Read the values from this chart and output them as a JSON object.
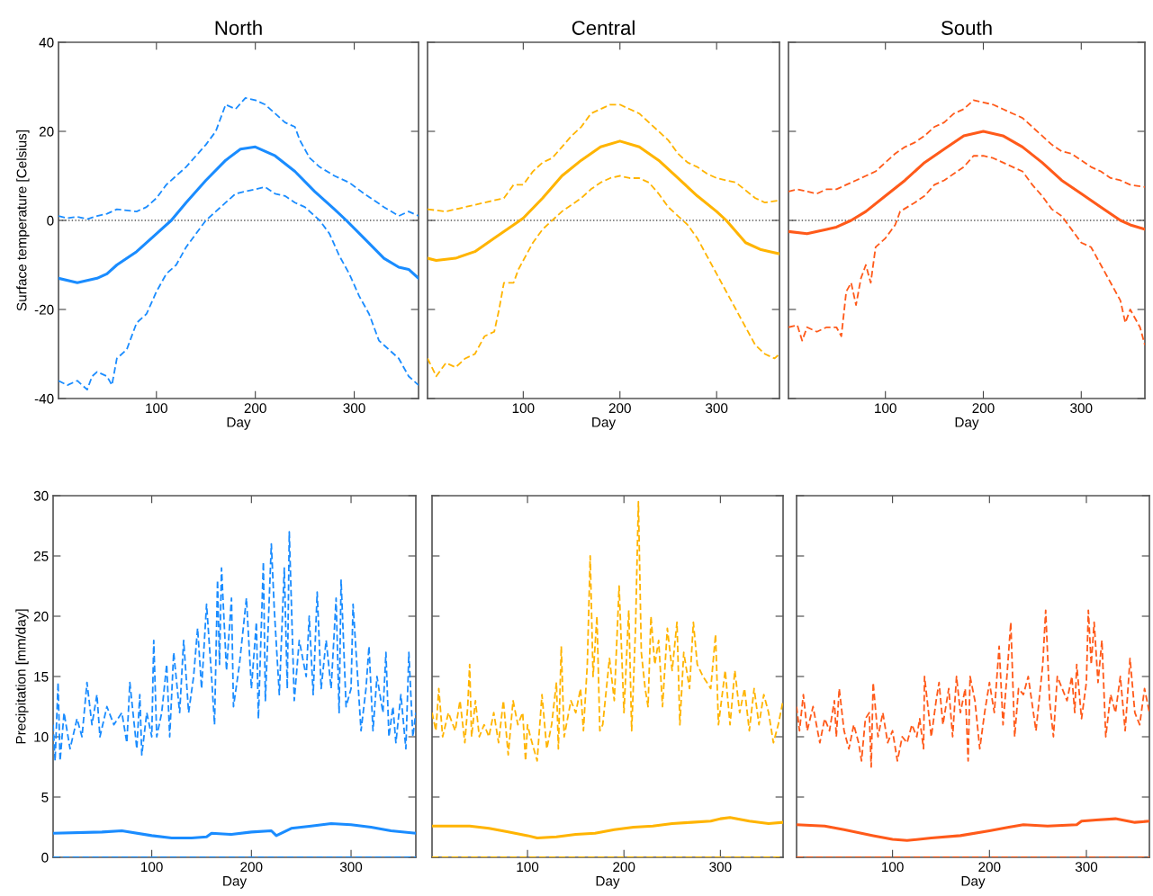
{
  "chart_data": [
    {
      "type": "line",
      "title": "North",
      "xlabel": "Day",
      "ylabel": "Surface temperature [Celsius]",
      "xlim": [
        1,
        365
      ],
      "xticks": [
        100,
        200,
        300
      ],
      "ylim": [
        -40,
        40
      ],
      "yticks": [
        -40,
        -20,
        0,
        20,
        40
      ],
      "ref_lines": [
        {
          "axis": "y",
          "value": 0,
          "color": "#555555",
          "line_style": "dotted"
        }
      ],
      "series": [
        {
          "color": "#1a8cff",
          "line_style": "solid",
          "x": [
            1,
            20,
            40,
            50,
            60,
            80,
            100,
            115,
            130,
            150,
            170,
            185,
            200,
            220,
            240,
            260,
            280,
            292,
            310,
            330,
            345,
            355,
            365
          ],
          "values": [
            -13,
            -14,
            -13,
            -12,
            -10,
            -7,
            -3,
            0,
            4,
            9,
            13.5,
            16,
            16.5,
            14.5,
            11,
            6.5,
            2.5,
            0,
            -4,
            -8.5,
            -10.5,
            -11,
            -13
          ]
        },
        {
          "color": "#1a8cff",
          "line_style": "dashed",
          "x": [
            1,
            10,
            20,
            30,
            40,
            50,
            60,
            80,
            90,
            100,
            110,
            120,
            130,
            140,
            150,
            160,
            170,
            180,
            190,
            200,
            210,
            220,
            230,
            240,
            245,
            255,
            265,
            280,
            295,
            310,
            330,
            345,
            355,
            365
          ],
          "values": [
            1,
            0.5,
            0.8,
            0.3,
            1,
            1.5,
            2.5,
            2,
            3,
            5,
            8,
            10,
            12,
            14.5,
            17,
            20,
            26,
            25,
            27.5,
            27,
            26,
            24,
            22,
            21,
            18,
            14,
            12,
            10,
            8.5,
            6,
            3,
            1,
            2,
            1
          ]
        },
        {
          "color": "#1a8cff",
          "line_style": "dashed",
          "x": [
            1,
            10,
            20,
            30,
            35,
            40,
            50,
            55,
            60,
            70,
            80,
            90,
            100,
            110,
            120,
            130,
            140,
            150,
            160,
            170,
            180,
            190,
            200,
            210,
            220,
            230,
            240,
            250,
            265,
            275,
            285,
            295,
            305,
            315,
            325,
            335,
            345,
            355,
            365
          ],
          "values": [
            -36,
            -37,
            -36,
            -38,
            -35,
            -34,
            -35,
            -37,
            -31,
            -29,
            -23,
            -21,
            -16,
            -12,
            -10,
            -6,
            -3,
            0,
            2,
            4,
            6,
            6.5,
            7,
            7.5,
            6,
            5.5,
            4,
            3,
            0,
            -3,
            -8,
            -12,
            -17,
            -21,
            -27,
            -29,
            -31,
            -35,
            -37
          ]
        }
      ]
    },
    {
      "type": "line",
      "title": "Central",
      "xlabel": "Day",
      "xlim": [
        1,
        365
      ],
      "xticks": [
        100,
        200,
        300
      ],
      "ylim": [
        -40,
        40
      ],
      "yticks": [
        -40,
        -20,
        0,
        20,
        40
      ],
      "tick_labels": "x",
      "ref_lines": [
        {
          "axis": "y",
          "value": 0,
          "color": "#555555",
          "line_style": "dotted"
        }
      ],
      "series": [
        {
          "color": "#ffb400",
          "line_style": "solid",
          "x": [
            1,
            10,
            30,
            50,
            70,
            90,
            100,
            120,
            140,
            160,
            180,
            200,
            220,
            240,
            260,
            280,
            300,
            310,
            330,
            345,
            355,
            365
          ],
          "values": [
            -8.5,
            -9,
            -8.5,
            -7,
            -4,
            -1,
            0.5,
            5,
            10,
            13.5,
            16.5,
            17.8,
            16.5,
            13.5,
            9.5,
            5.5,
            2,
            0,
            -5,
            -6.5,
            -7,
            -7.5
          ]
        },
        {
          "color": "#ffb400",
          "line_style": "dashed",
          "x": [
            1,
            20,
            40,
            60,
            80,
            90,
            100,
            110,
            120,
            130,
            140,
            150,
            160,
            170,
            180,
            190,
            200,
            210,
            220,
            230,
            240,
            250,
            260,
            270,
            280,
            290,
            300,
            320,
            340,
            350,
            365
          ],
          "values": [
            2.5,
            2,
            3,
            4,
            5,
            8,
            8,
            11,
            13,
            14,
            16.5,
            19,
            21,
            24,
            25,
            26,
            26,
            25,
            24,
            22,
            20,
            18,
            15,
            13,
            12,
            10.5,
            9.5,
            8.5,
            5,
            4,
            4.5
          ]
        },
        {
          "color": "#ffb400",
          "line_style": "dashed",
          "x": [
            1,
            10,
            20,
            30,
            40,
            50,
            60,
            70,
            75,
            80,
            90,
            95,
            100,
            110,
            120,
            130,
            140,
            150,
            160,
            170,
            180,
            190,
            200,
            210,
            220,
            230,
            240,
            250,
            260,
            270,
            280,
            290,
            300,
            310,
            320,
            330,
            340,
            350,
            360,
            365
          ],
          "values": [
            -31,
            -35,
            -32,
            -33,
            -31,
            -30,
            -26,
            -25,
            -20,
            -14,
            -14,
            -11,
            -9,
            -5,
            -2,
            0,
            2,
            3.5,
            5,
            7,
            8.5,
            9.5,
            10,
            9.5,
            9.5,
            8.5,
            6,
            3,
            1,
            -1,
            -4,
            -8,
            -12,
            -16,
            -20,
            -24,
            -28,
            -30,
            -31,
            -30
          ]
        }
      ]
    },
    {
      "type": "line",
      "title": "South",
      "xlabel": "Day",
      "xlim": [
        1,
        365
      ],
      "xticks": [
        100,
        200,
        300
      ],
      "ylim": [
        -40,
        40
      ],
      "yticks": [
        -40,
        -20,
        0,
        20,
        40
      ],
      "tick_labels": "x",
      "ref_lines": [
        {
          "axis": "y",
          "value": 0,
          "color": "#555555",
          "line_style": "dotted"
        }
      ],
      "series": [
        {
          "color": "#ff5a1a",
          "line_style": "solid",
          "x": [
            1,
            20,
            40,
            50,
            65,
            80,
            100,
            120,
            140,
            160,
            180,
            200,
            220,
            240,
            260,
            280,
            300,
            320,
            340,
            350,
            365
          ],
          "values": [
            -2.5,
            -3,
            -2,
            -1.5,
            0,
            2,
            5.5,
            9,
            13,
            16,
            19,
            20,
            19,
            16.5,
            13,
            9,
            6,
            3,
            0,
            -1,
            -2
          ]
        },
        {
          "color": "#ff5a1a",
          "line_style": "dashed",
          "x": [
            1,
            10,
            20,
            30,
            40,
            50,
            60,
            70,
            80,
            90,
            100,
            110,
            120,
            130,
            140,
            150,
            160,
            170,
            180,
            190,
            200,
            210,
            220,
            230,
            240,
            250,
            260,
            270,
            280,
            290,
            300,
            310,
            320,
            330,
            340,
            350,
            365
          ],
          "values": [
            6.5,
            7,
            6.5,
            6,
            7,
            7,
            8,
            9,
            10,
            11,
            13,
            15,
            16.5,
            17.5,
            19,
            21,
            22,
            24,
            25,
            27,
            26.5,
            26,
            25,
            24,
            23,
            21,
            19,
            17,
            15.5,
            15,
            13.5,
            12,
            11,
            9.5,
            9,
            8,
            7.5
          ]
        },
        {
          "color": "#ff5a1a",
          "line_style": "dashed",
          "x": [
            1,
            10,
            15,
            20,
            30,
            40,
            50,
            55,
            60,
            65,
            70,
            75,
            80,
            85,
            90,
            100,
            110,
            115,
            130,
            140,
            150,
            160,
            170,
            180,
            190,
            200,
            210,
            220,
            230,
            240,
            250,
            260,
            270,
            280,
            290,
            300,
            310,
            320,
            330,
            340,
            345,
            350,
            360,
            365
          ],
          "values": [
            -24,
            -23.5,
            -27,
            -24,
            -25,
            -24,
            -24,
            -26,
            -16,
            -14,
            -19,
            -13,
            -10,
            -14,
            -6,
            -4,
            -1,
            2,
            4,
            5.5,
            8,
            9,
            10.5,
            12,
            14.5,
            14.5,
            14,
            13,
            12,
            11,
            8,
            5.5,
            2.5,
            1,
            -2,
            -5,
            -6,
            -10,
            -14,
            -18,
            -23,
            -20,
            -24,
            -28
          ]
        }
      ]
    },
    {
      "type": "line",
      "xlabel": "Day",
      "ylabel": "Precipitation [mm/day]",
      "xlim": [
        1,
        365
      ],
      "xticks": [
        100,
        200,
        300
      ],
      "ylim": [
        0,
        30
      ],
      "yticks": [
        0,
        5,
        10,
        15,
        20,
        25,
        30
      ],
      "series": [
        {
          "color": "#1a8cff",
          "line_style": "solid",
          "x": [
            1,
            50,
            70,
            100,
            120,
            140,
            155,
            160,
            180,
            200,
            220,
            225,
            240,
            260,
            280,
            300,
            320,
            340,
            365
          ],
          "values": [
            2,
            2.1,
            2.2,
            1.8,
            1.6,
            1.6,
            1.7,
            2,
            1.9,
            2.1,
            2.2,
            1.8,
            2.4,
            2.6,
            2.8,
            2.7,
            2.5,
            2.2,
            2
          ]
        },
        {
          "color": "#1a8cff",
          "line_style": "dashed",
          "x": [
            1,
            3,
            6,
            8,
            12,
            18,
            25,
            30,
            35,
            40,
            45,
            48,
            55,
            62,
            70,
            75,
            78,
            85,
            88,
            90,
            95,
            100,
            102,
            105,
            110,
            115,
            118,
            122,
            128,
            132,
            137,
            142,
            146,
            150,
            155,
            160,
            163,
            166,
            168,
            170,
            175,
            180,
            182,
            188,
            195,
            200,
            205,
            207,
            212,
            214,
            220,
            223,
            228,
            233,
            236,
            238,
            243,
            248,
            255,
            258,
            262,
            266,
            270,
            275,
            280,
            285,
            288,
            290,
            295,
            300,
            302,
            310,
            315,
            318,
            322,
            326,
            332,
            335,
            338,
            342,
            345,
            350,
            355,
            358,
            362,
            365
          ],
          "values": [
            11,
            8,
            14.5,
            8,
            12,
            9,
            11.5,
            10,
            14.5,
            11,
            13.5,
            10,
            12.5,
            11,
            12,
            9.5,
            14.5,
            9,
            13.5,
            8.5,
            12,
            10,
            18,
            10,
            12,
            16,
            10,
            17,
            12,
            18,
            12,
            15,
            19,
            14,
            21,
            15,
            11,
            23,
            16,
            24,
            15.5,
            21.5,
            12.5,
            16,
            21.5,
            14,
            19.5,
            11.5,
            24.5,
            13,
            26,
            20.5,
            13.5,
            24,
            14,
            27,
            13,
            18,
            15,
            20,
            13.5,
            22,
            14,
            18,
            14,
            21.5,
            12,
            23,
            12.5,
            14,
            21,
            10.5,
            14,
            17.5,
            10.5,
            15,
            12,
            17,
            10,
            12.5,
            9.5,
            13.5,
            9,
            17,
            10,
            12
          ]
        },
        {
          "color": "#1a8cff",
          "line_style": "dashed",
          "x": [
            1,
            365
          ],
          "values": [
            0,
            0
          ]
        }
      ]
    },
    {
      "type": "line",
      "xlabel": "Day",
      "xlim": [
        1,
        365
      ],
      "xticks": [
        100,
        200,
        300
      ],
      "ylim": [
        0,
        30
      ],
      "yticks": [
        0,
        5,
        10,
        15,
        20,
        25,
        30
      ],
      "tick_labels": "x",
      "series": [
        {
          "color": "#ffb400",
          "line_style": "solid",
          "x": [
            1,
            20,
            40,
            60,
            80,
            100,
            110,
            130,
            150,
            170,
            190,
            210,
            230,
            250,
            270,
            290,
            300,
            310,
            330,
            350,
            365
          ],
          "values": [
            2.6,
            2.6,
            2.6,
            2.4,
            2.1,
            1.8,
            1.6,
            1.7,
            1.9,
            2,
            2.3,
            2.5,
            2.6,
            2.8,
            2.9,
            3,
            3.2,
            3.3,
            3,
            2.8,
            2.9
          ]
        },
        {
          "color": "#ffb400",
          "line_style": "dashed",
          "x": [
            1,
            5,
            8,
            12,
            18,
            25,
            30,
            35,
            38,
            40,
            42,
            46,
            50,
            55,
            60,
            65,
            70,
            75,
            80,
            85,
            90,
            95,
            98,
            100,
            103,
            110,
            115,
            120,
            125,
            130,
            132,
            135,
            138,
            145,
            150,
            155,
            158,
            162,
            165,
            168,
            172,
            175,
            178,
            185,
            190,
            195,
            200,
            205,
            208,
            212,
            215,
            218,
            222,
            225,
            228,
            232,
            236,
            240,
            245,
            250,
            255,
            258,
            262,
            268,
            272,
            276,
            282,
            290,
            295,
            298,
            305,
            310,
            315,
            320,
            325,
            330,
            335,
            340,
            345,
            350,
            355,
            360,
            365
          ],
          "values": [
            12,
            10.5,
            14,
            10,
            12,
            10.5,
            13,
            9.5,
            12.5,
            16,
            10,
            13,
            10,
            11,
            10,
            12,
            9.5,
            13,
            8.5,
            13,
            11,
            12,
            8,
            11,
            10,
            8,
            13.5,
            9,
            11,
            14.5,
            9,
            17.5,
            10,
            13,
            12,
            14,
            10.5,
            16,
            25,
            15,
            20,
            10.5,
            11,
            16.5,
            13,
            22.5,
            12,
            20.5,
            10.5,
            19,
            29.5,
            17,
            14,
            12.5,
            20,
            16,
            18,
            12.5,
            19,
            15.5,
            19.5,
            11,
            17,
            14,
            19.5,
            16,
            15,
            14,
            18.5,
            11,
            15.5,
            11,
            15.5,
            12,
            14,
            10.5,
            14,
            11,
            13.5,
            12,
            9.5,
            11,
            13
          ]
        },
        {
          "color": "#ffb400",
          "line_style": "dashed",
          "x": [
            1,
            365
          ],
          "values": [
            0,
            0
          ]
        }
      ]
    },
    {
      "type": "line",
      "xlabel": "Day",
      "xlim": [
        1,
        365
      ],
      "xticks": [
        100,
        200,
        300
      ],
      "ylim": [
        0,
        30
      ],
      "yticks": [
        0,
        5,
        10,
        15,
        20,
        25,
        30
      ],
      "tick_labels": "x",
      "series": [
        {
          "color": "#ff5a1a",
          "line_style": "solid",
          "x": [
            1,
            30,
            50,
            80,
            100,
            115,
            140,
            170,
            200,
            220,
            235,
            260,
            290,
            295,
            310,
            330,
            350,
            365
          ],
          "values": [
            2.7,
            2.6,
            2.3,
            1.8,
            1.5,
            1.4,
            1.6,
            1.8,
            2.2,
            2.5,
            2.7,
            2.6,
            2.7,
            3,
            3.1,
            3.2,
            2.9,
            3
          ]
        },
        {
          "color": "#ff5a1a",
          "line_style": "dashed",
          "x": [
            1,
            4,
            8,
            12,
            18,
            25,
            30,
            35,
            40,
            42,
            45,
            50,
            55,
            60,
            65,
            68,
            72,
            76,
            78,
            80,
            85,
            90,
            95,
            100,
            105,
            110,
            115,
            120,
            125,
            128,
            132,
            133,
            140,
            145,
            148,
            152,
            158,
            162,
            166,
            170,
            175,
            178,
            180,
            185,
            190,
            195,
            200,
            205,
            210,
            214,
            218,
            222,
            226,
            230,
            235,
            240,
            248,
            255,
            258,
            262,
            266,
            270,
            280,
            285,
            288,
            290,
            295,
            300,
            302,
            305,
            308,
            312,
            316,
            320,
            325,
            330,
            335,
            340,
            345,
            350,
            355,
            360,
            365
          ],
          "values": [
            12.5,
            10.5,
            13.5,
            10.5,
            12.5,
            9.5,
            11.5,
            10.5,
            13,
            10,
            14,
            10.5,
            9,
            11,
            9.5,
            8,
            11.5,
            12,
            7.5,
            14.5,
            10,
            12,
            9.5,
            10.5,
            8,
            10,
            9.5,
            11,
            10,
            11.5,
            9,
            15,
            10,
            13,
            14.5,
            11,
            14,
            10,
            15,
            12,
            14,
            8,
            15,
            13,
            9,
            12,
            14.5,
            12,
            17.5,
            11,
            15,
            19.5,
            10,
            14,
            13.5,
            15,
            10.5,
            16,
            20.5,
            13,
            10,
            15,
            13,
            15,
            12,
            16,
            11.5,
            14.5,
            20.5,
            16,
            19.5,
            14.5,
            18,
            10,
            13.5,
            12,
            15,
            10.5,
            16.5,
            12,
            11,
            14,
            12
          ]
        },
        {
          "color": "#ff5a1a",
          "line_style": "dashed",
          "x": [
            1,
            365
          ],
          "values": [
            0,
            0
          ]
        }
      ]
    }
  ]
}
